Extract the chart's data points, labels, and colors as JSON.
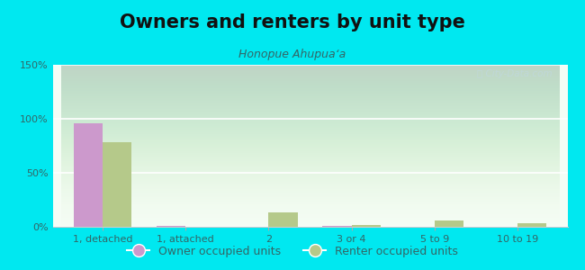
{
  "title": "Owners and renters by unit type",
  "subtitle": "Honopue Ahupuaʻa",
  "categories": [
    "1, detached",
    "1, attached",
    "2",
    "3 or 4",
    "5 to 9",
    "10 to 19"
  ],
  "owner_values": [
    96,
    1,
    0,
    1,
    0,
    0
  ],
  "renter_values": [
    78,
    0,
    13,
    2,
    6,
    3
  ],
  "owner_color": "#cc99cc",
  "renter_color": "#b5c98a",
  "background_outer": "#00e8f0",
  "yticks": [
    0,
    50,
    100,
    150
  ],
  "ytick_labels": [
    "0%",
    "50%",
    "100%",
    "150%"
  ],
  "ylim": [
    0,
    150
  ],
  "bar_width": 0.35,
  "legend_owner": "Owner occupied units",
  "legend_renter": "Renter occupied units",
  "title_fontsize": 15,
  "subtitle_fontsize": 9,
  "tick_fontsize": 8,
  "legend_fontsize": 9,
  "plot_bg_top": "#e6f4e6",
  "plot_bg_bottom": "#f8fff8",
  "watermark_color": "#c0d8d8",
  "axis_text_color": "#336666",
  "title_color": "#111111"
}
